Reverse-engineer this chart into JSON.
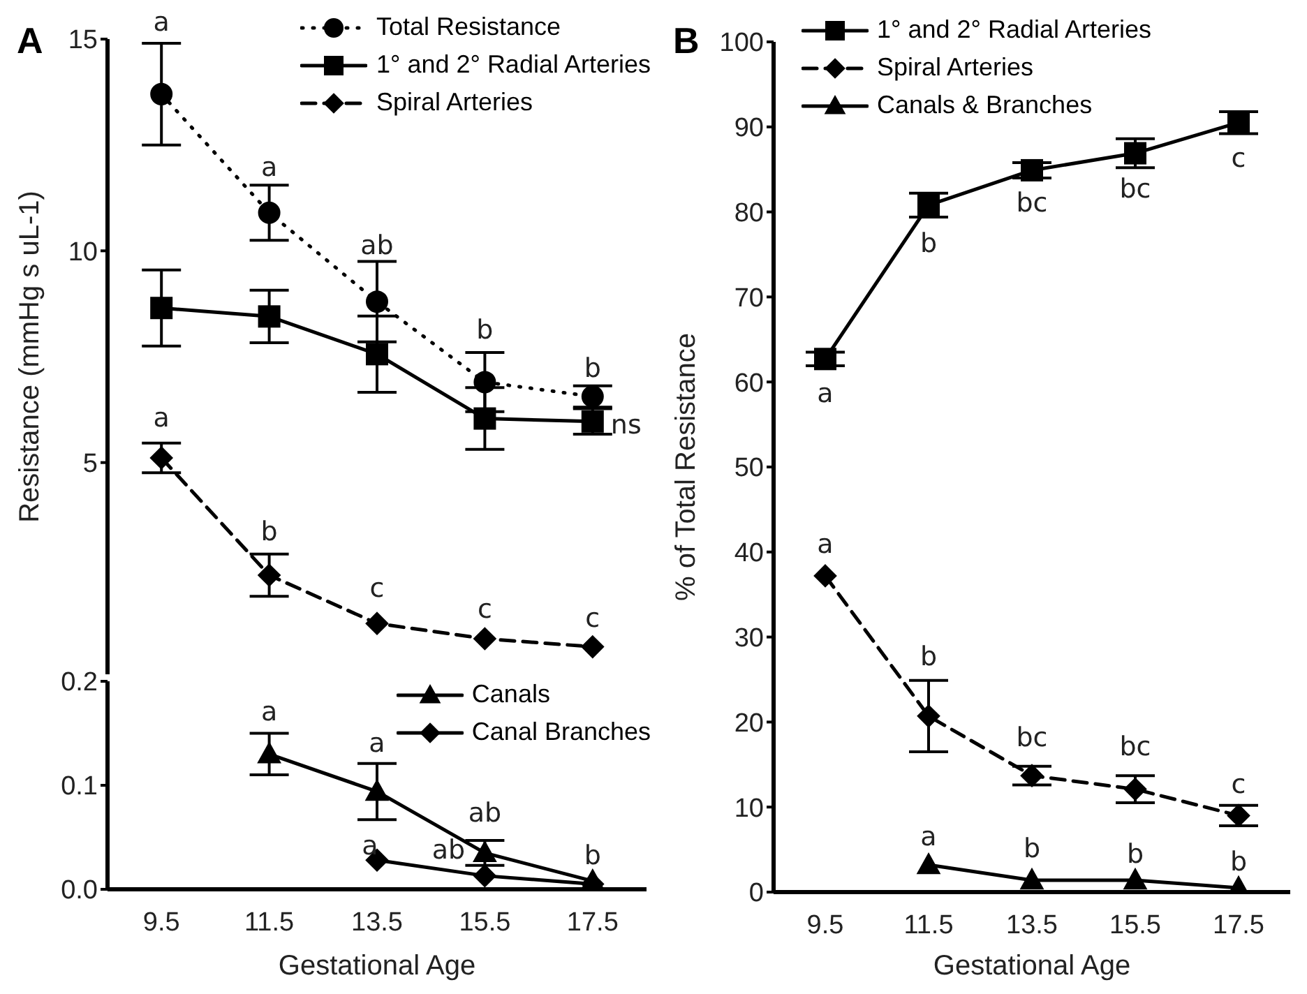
{
  "chart_data": [
    {
      "type": "line",
      "title": "A",
      "ylabel": "Resistance (mmHg s uL-1)",
      "categories": [
        "9.5",
        "11.5",
        "13.5",
        "15.5",
        "17.5"
      ],
      "ylim": [
        0,
        15
      ],
      "yticks": [
        5,
        10,
        15
      ],
      "tick_labels": "y",
      "legend": "top right",
      "grid": false,
      "series": [
        {
          "name": "Total Resistance",
          "color": "#000000",
          "marker": "circle",
          "line_style": "dotted",
          "values": [
            13.7,
            10.9,
            8.8,
            6.9,
            6.56
          ],
          "errors": [
            1.2,
            0.65,
            0.95,
            0.7,
            0.25
          ]
        },
        {
          "name": "1° and 2° Radial Arteries",
          "color": "#000000",
          "marker": "square",
          "line_style": "solid",
          "values": [
            8.65,
            8.45,
            7.56,
            6.04,
            5.97
          ],
          "errors": [
            0.9,
            0.62,
            0.9,
            0.73,
            0.3
          ]
        },
        {
          "name": "Spiral Arteries",
          "color": "#000000",
          "marker": "diamond",
          "line_style": "dashed",
          "values": [
            5.11,
            2.34,
            1.2,
            0.84,
            0.65
          ],
          "errors": [
            0.35,
            0.5,
            null,
            null,
            null
          ]
        }
      ],
      "annotations": [
        {
          "text": "a",
          "x": "9.5",
          "y": 13.7
        },
        {
          "text": "a",
          "x": "11.5",
          "y": 10.9
        },
        {
          "text": "ab",
          "x": "13.5",
          "y": 8.8
        },
        {
          "text": "b",
          "x": "15.5",
          "y": 6.9
        },
        {
          "text": "b",
          "x": "17.5",
          "y": 6.56
        },
        {
          "text": "ns",
          "x": "17.5",
          "y": 5.97
        },
        {
          "text": "a",
          "x": "9.5",
          "y": 5.11
        },
        {
          "text": "b",
          "x": "11.5",
          "y": 2.34
        },
        {
          "text": "c",
          "x": "13.5",
          "y": 1.2
        },
        {
          "text": "c",
          "x": "15.5",
          "y": 0.84
        },
        {
          "text": "c",
          "x": "17.5",
          "y": 0.65
        }
      ]
    },
    {
      "type": "line",
      "xlabel": "Gestational Age",
      "xlim": [
        8.5,
        18.5
      ],
      "xticks": [
        9.5,
        11.5,
        13.5,
        15.5,
        17.5
      ],
      "ylim": [
        0,
        0.2
      ],
      "yticks": [
        {
          "value": 0,
          "label": "0.0"
        },
        0.1,
        0.2
      ],
      "legend": "top right",
      "grid": false,
      "series": [
        {
          "name": "Canals",
          "color": "#000000",
          "marker": "triangle",
          "line_style": "solid",
          "x": [
            11.5,
            13.5,
            15.5,
            17.5
          ],
          "values": [
            0.13,
            0.094,
            0.035,
            0.008
          ],
          "errors": [
            0.02,
            0.027,
            0.012,
            null
          ]
        },
        {
          "name": "Canal Branches",
          "color": "#000000",
          "marker": "diamond",
          "line_style": "solid",
          "x": [
            13.5,
            15.5,
            17.5
          ],
          "values": [
            0.028,
            0.013,
            0.005
          ]
        }
      ],
      "annotations": [
        {
          "text": "a",
          "x": 11.5,
          "y": 0.13
        },
        {
          "text": "a",
          "x": 13.5,
          "y": 0.094
        },
        {
          "text": "ab",
          "x": 15.5,
          "y": 0.035
        },
        {
          "text": "b",
          "x": 17.5,
          "y": 0.008
        },
        {
          "text": "a",
          "x": 13.5,
          "y": 0.028
        },
        {
          "text": "ab",
          "x": 15.5,
          "y": 0.013
        }
      ]
    },
    {
      "type": "line",
      "title": "B",
      "xlabel": "Gestational Age",
      "ylabel": "% of Total Resistance",
      "x": [
        9.5,
        11.5,
        13.5,
        15.5,
        17.5
      ],
      "xlim": [
        8.5,
        18.5
      ],
      "xticks": [
        9.5,
        11.5,
        13.5,
        15.5,
        17.5
      ],
      "ylim": [
        0,
        100
      ],
      "yticks": [
        0,
        10,
        20,
        30,
        40,
        50,
        60,
        70,
        80,
        90,
        100
      ],
      "legend": "top left",
      "grid": false,
      "series": [
        {
          "name": "1° and 2° Radial Arteries",
          "color": "#000000",
          "marker": "square",
          "line_style": "solid",
          "values": [
            62.7,
            80.8,
            84.9,
            86.9,
            90.5
          ],
          "errors": [
            0.8,
            1.4,
            0.9,
            1.7,
            1.3
          ]
        },
        {
          "name": "Spiral Arteries",
          "color": "#000000",
          "marker": "diamond",
          "line_style": "dashed",
          "values": [
            37.2,
            20.7,
            13.7,
            12.1,
            9.0
          ],
          "errors": [
            null,
            4.2,
            1.1,
            1.6,
            1.2
          ]
        },
        {
          "name": "Canals & Branches",
          "color": "#000000",
          "marker": "triangle",
          "line_style": "solid",
          "values": [
            null,
            3.2,
            1.4,
            1.4,
            0.5
          ]
        }
      ],
      "annotations": [
        {
          "text": "a",
          "x": 9.5,
          "y": 62.7
        },
        {
          "text": "b",
          "x": 11.5,
          "y": 80.8
        },
        {
          "text": "bc",
          "x": 13.5,
          "y": 84.9
        },
        {
          "text": "bc",
          "x": 15.5,
          "y": 86.9
        },
        {
          "text": "c",
          "x": 17.5,
          "y": 90.5
        },
        {
          "text": "a",
          "x": 9.5,
          "y": 37.2
        },
        {
          "text": "b",
          "x": 11.5,
          "y": 20.7
        },
        {
          "text": "bc",
          "x": 13.5,
          "y": 13.7
        },
        {
          "text": "bc",
          "x": 15.5,
          "y": 12.1
        },
        {
          "text": "c",
          "x": 17.5,
          "y": 9.0
        },
        {
          "text": "a",
          "x": 11.5,
          "y": 3.2
        },
        {
          "text": "b",
          "x": 13.5,
          "y": 1.4
        },
        {
          "text": "b",
          "x": 15.5,
          "y": 1.4
        },
        {
          "text": "b",
          "x": 17.5,
          "y": 0.5
        }
      ]
    }
  ]
}
